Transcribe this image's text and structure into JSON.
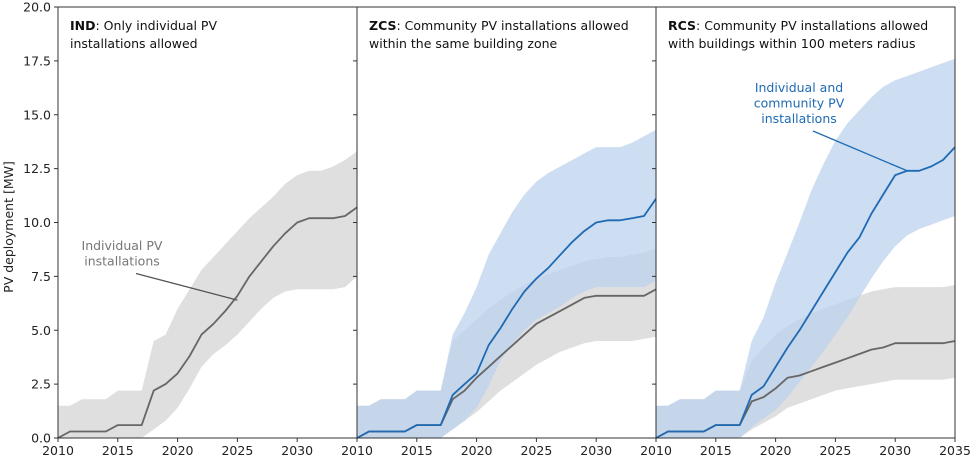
{
  "chart_data": {
    "type": "line",
    "ylabel": "PV deployment [MW]",
    "ylim": [
      0,
      20
    ],
    "yticks": [
      "0.0",
      "2.5",
      "5.0",
      "7.5",
      "10.0",
      "12.5",
      "15.0",
      "17.5",
      "20.0"
    ],
    "xlim": [
      2010,
      2035
    ],
    "xticks": [
      "2010",
      "2015",
      "2020",
      "2025",
      "2030",
      "2035"
    ],
    "grid": false,
    "colors": {
      "individual_line": "#666666",
      "individual_band": "#d9d9d9",
      "community_line": "#1f6ab3",
      "community_band": "#bcd2ee"
    },
    "panels": [
      {
        "title_bold": "IND",
        "title_rest": ": Only individual PV",
        "title_line2": "installations allowed",
        "annotation": {
          "lines": [
            "Individual PV",
            "installations"
          ],
          "color": "#777777",
          "target": [
            2025,
            6.4
          ]
        },
        "series": [
          {
            "role": "individual",
            "x": [
              2010,
              2011,
              2012,
              2013,
              2014,
              2015,
              2016,
              2017,
              2018,
              2019,
              2020,
              2021,
              2022,
              2023,
              2024,
              2025,
              2026,
              2027,
              2028,
              2029,
              2030,
              2031,
              2032,
              2033,
              2034,
              2035
            ],
            "median": [
              0,
              0.3,
              0.3,
              0.3,
              0.3,
              0.6,
              0.6,
              0.6,
              2.2,
              2.5,
              3,
              3.8,
              4.8,
              5.3,
              5.9,
              6.6,
              7.5,
              8.2,
              8.9,
              9.5,
              10,
              10.2,
              10.2,
              10.2,
              10.3,
              10.7
            ],
            "low": [
              0,
              0,
              0,
              0,
              0,
              0,
              0,
              0,
              0.4,
              0.8,
              1.4,
              2.3,
              3.3,
              3.9,
              4.3,
              4.8,
              5.4,
              6,
              6.5,
              6.8,
              6.9,
              6.9,
              6.9,
              6.9,
              7,
              7.5
            ],
            "high": [
              1.5,
              1.5,
              1.8,
              1.8,
              1.8,
              2.2,
              2.2,
              2.2,
              4.5,
              4.8,
              6,
              6.9,
              7.8,
              8.4,
              9,
              9.6,
              10.2,
              10.7,
              11.2,
              11.8,
              12.2,
              12.4,
              12.4,
              12.6,
              12.9,
              13.3
            ]
          }
        ]
      },
      {
        "title_bold": "ZCS",
        "title_rest": ": Community PV installations allowed",
        "title_line2": "within the same building zone",
        "series": [
          {
            "role": "individual",
            "x": [
              2010,
              2011,
              2012,
              2013,
              2014,
              2015,
              2016,
              2017,
              2018,
              2019,
              2020,
              2021,
              2022,
              2023,
              2024,
              2025,
              2026,
              2027,
              2028,
              2029,
              2030,
              2031,
              2032,
              2033,
              2034,
              2035
            ],
            "median": [
              0,
              0.3,
              0.3,
              0.3,
              0.3,
              0.6,
              0.6,
              0.6,
              1.8,
              2.2,
              2.8,
              3.3,
              3.8,
              4.3,
              4.8,
              5.3,
              5.6,
              5.9,
              6.2,
              6.5,
              6.6,
              6.6,
              6.6,
              6.6,
              6.6,
              6.9
            ],
            "low": [
              0,
              0,
              0,
              0,
              0,
              0,
              0,
              0,
              0.4,
              0.8,
              1.2,
              1.7,
              2.2,
              2.6,
              3,
              3.4,
              3.7,
              4,
              4.2,
              4.4,
              4.5,
              4.5,
              4.5,
              4.5,
              4.6,
              4.7
            ],
            "high": [
              1.5,
              1.5,
              1.8,
              1.8,
              1.8,
              2.2,
              2.2,
              2.2,
              4.5,
              5,
              5.5,
              6,
              6.4,
              6.8,
              7.1,
              7.4,
              7.6,
              7.8,
              8,
              8.2,
              8.3,
              8.4,
              8.4,
              8.5,
              8.6,
              8.8
            ]
          },
          {
            "role": "community",
            "x": [
              2010,
              2011,
              2012,
              2013,
              2014,
              2015,
              2016,
              2017,
              2018,
              2019,
              2020,
              2021,
              2022,
              2023,
              2024,
              2025,
              2026,
              2027,
              2028,
              2029,
              2030,
              2031,
              2032,
              2033,
              2034,
              2035
            ],
            "median": [
              0,
              0.3,
              0.3,
              0.3,
              0.3,
              0.6,
              0.6,
              0.6,
              2,
              2.5,
              3,
              4.3,
              5.1,
              6,
              6.8,
              7.4,
              7.9,
              8.5,
              9.1,
              9.6,
              10,
              10.1,
              10.1,
              10.2,
              10.3,
              11.1
            ],
            "low": [
              0,
              0,
              0,
              0,
              0,
              0,
              0,
              0,
              0.4,
              0.8,
              1.4,
              2.4,
              3.6,
              4.4,
              5,
              5.5,
              5.8,
              6.1,
              6.5,
              6.8,
              7,
              7,
              7,
              7,
              7,
              7.3
            ],
            "high": [
              1.5,
              1.5,
              1.8,
              1.8,
              1.8,
              2.2,
              2.2,
              2.2,
              4.8,
              5.8,
              7,
              8.5,
              9.5,
              10.5,
              11.3,
              11.9,
              12.3,
              12.6,
              12.9,
              13.2,
              13.5,
              13.5,
              13.5,
              13.7,
              14,
              14.3
            ]
          }
        ]
      },
      {
        "title_bold": "RCS",
        "title_rest": ": Community PV installations allowed",
        "title_line2": "with buildings within 100 meters radius",
        "annotation": {
          "lines": [
            "Individual and",
            "community PV",
            "installations"
          ],
          "color": "#1f6ab3",
          "target": [
            2031,
            12.4
          ]
        },
        "series": [
          {
            "role": "individual",
            "x": [
              2010,
              2011,
              2012,
              2013,
              2014,
              2015,
              2016,
              2017,
              2018,
              2019,
              2020,
              2021,
              2022,
              2023,
              2024,
              2025,
              2026,
              2027,
              2028,
              2029,
              2030,
              2031,
              2032,
              2033,
              2034,
              2035
            ],
            "median": [
              0,
              0.3,
              0.3,
              0.3,
              0.3,
              0.6,
              0.6,
              0.6,
              1.7,
              1.9,
              2.3,
              2.8,
              2.9,
              3.1,
              3.3,
              3.5,
              3.7,
              3.9,
              4.1,
              4.2,
              4.4,
              4.4,
              4.4,
              4.4,
              4.4,
              4.5
            ],
            "low": [
              0,
              0,
              0,
              0,
              0,
              0,
              0,
              0,
              0.4,
              0.7,
              1,
              1.4,
              1.6,
              1.8,
              2,
              2.2,
              2.3,
              2.4,
              2.5,
              2.6,
              2.7,
              2.7,
              2.7,
              2.7,
              2.7,
              2.8
            ],
            "high": [
              1.5,
              1.5,
              1.8,
              1.8,
              1.8,
              2.2,
              2.2,
              2.2,
              3.6,
              4.2,
              4.8,
              5.2,
              5.5,
              5.8,
              6,
              6.2,
              6.4,
              6.6,
              6.8,
              6.9,
              7,
              7,
              7,
              7,
              7,
              7.1
            ]
          },
          {
            "role": "community",
            "x": [
              2010,
              2011,
              2012,
              2013,
              2014,
              2015,
              2016,
              2017,
              2018,
              2019,
              2020,
              2021,
              2022,
              2023,
              2024,
              2025,
              2026,
              2027,
              2028,
              2029,
              2030,
              2031,
              2032,
              2033,
              2034,
              2035
            ],
            "median": [
              0,
              0.3,
              0.3,
              0.3,
              0.3,
              0.6,
              0.6,
              0.6,
              2,
              2.4,
              3.3,
              4.2,
              5,
              5.9,
              6.8,
              7.7,
              8.6,
              9.3,
              10.4,
              11.3,
              12.2,
              12.4,
              12.4,
              12.6,
              12.9,
              13.5
            ],
            "low": [
              0,
              0,
              0,
              0,
              0,
              0,
              0,
              0,
              0.5,
              0.9,
              1.3,
              1.9,
              2.6,
              3.3,
              4,
              4.8,
              5.6,
              6.5,
              7.4,
              8.2,
              8.9,
              9.4,
              9.7,
              9.9,
              10.1,
              10.3
            ],
            "high": [
              1.5,
              1.5,
              1.8,
              1.8,
              1.8,
              2.2,
              2.2,
              2.2,
              4.5,
              5.6,
              7.2,
              8.6,
              10,
              11.5,
              12.7,
              13.8,
              14.6,
              15.2,
              15.8,
              16.3,
              16.6,
              16.8,
              17,
              17.2,
              17.4,
              17.6
            ]
          }
        ]
      }
    ]
  }
}
